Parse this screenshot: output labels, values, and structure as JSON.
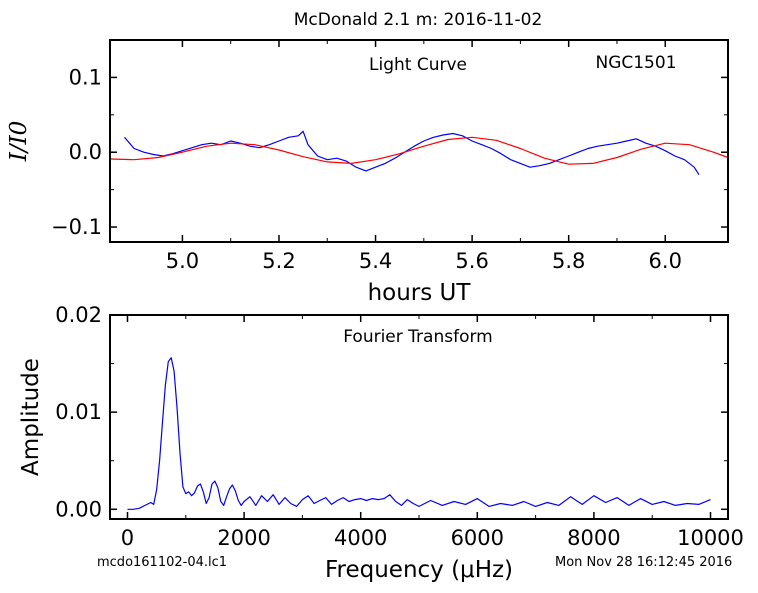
{
  "suptitle": "McDonald 2.1 m:  2016-11-02",
  "footer": {
    "filename": "mcdo161102-04.lc1",
    "timestamp": "Mon Nov 28 16:12:45 2016"
  },
  "colors": {
    "data": "#0000ff",
    "fit": "#ff0000",
    "axes": "#000000"
  },
  "chart_data": [
    {
      "type": "line",
      "annotations": [
        "Light Curve",
        "NGC1501"
      ],
      "xlabel": "hours UT",
      "ylabel": "I/I0",
      "xlim": [
        4.85,
        6.13
      ],
      "ylim": [
        -0.12,
        0.15
      ],
      "xticks": [
        5.0,
        5.2,
        5.4,
        5.6,
        5.8,
        6.0
      ],
      "xtick_labels": [
        "5.0",
        "5.2",
        "5.4",
        "5.6",
        "5.8",
        "6.0"
      ],
      "yticks": [
        0.1,
        0.0,
        -0.1
      ],
      "ytick_labels": [
        "0.1",
        "0.0",
        "−0.1"
      ],
      "series": [
        {
          "role": "data",
          "x": [
            4.88,
            4.9,
            4.92,
            4.94,
            4.96,
            4.98,
            5.0,
            5.02,
            5.04,
            5.06,
            5.08,
            5.1,
            5.12,
            5.14,
            5.16,
            5.18,
            5.2,
            5.22,
            5.24,
            5.25,
            5.26,
            5.28,
            5.3,
            5.32,
            5.34,
            5.36,
            5.38,
            5.4,
            5.42,
            5.44,
            5.46,
            5.48,
            5.5,
            5.52,
            5.54,
            5.56,
            5.58,
            5.6,
            5.62,
            5.64,
            5.66,
            5.68,
            5.7,
            5.72,
            5.74,
            5.76,
            5.78,
            5.8,
            5.82,
            5.84,
            5.86,
            5.88,
            5.9,
            5.92,
            5.94,
            5.96,
            5.98,
            6.0,
            6.02,
            6.04,
            6.06,
            6.07
          ],
          "y": [
            0.02,
            0.005,
            0.0,
            -0.003,
            -0.005,
            -0.002,
            0.002,
            0.006,
            0.01,
            0.012,
            0.01,
            0.015,
            0.012,
            0.008,
            0.006,
            0.01,
            0.015,
            0.02,
            0.022,
            0.028,
            0.01,
            -0.005,
            -0.01,
            -0.008,
            -0.012,
            -0.02,
            -0.025,
            -0.02,
            -0.015,
            -0.008,
            0.0,
            0.008,
            0.015,
            0.02,
            0.023,
            0.025,
            0.022,
            0.015,
            0.01,
            0.005,
            -0.002,
            -0.01,
            -0.015,
            -0.02,
            -0.018,
            -0.015,
            -0.01,
            -0.005,
            0.0,
            0.005,
            0.008,
            0.01,
            0.012,
            0.015,
            0.018,
            0.012,
            0.008,
            0.002,
            -0.005,
            -0.01,
            -0.02,
            -0.03
          ]
        },
        {
          "role": "fit",
          "x": [
            4.85,
            4.9,
            4.95,
            5.0,
            5.05,
            5.1,
            5.15,
            5.2,
            5.25,
            5.3,
            5.35,
            5.4,
            5.45,
            5.5,
            5.55,
            5.6,
            5.65,
            5.7,
            5.75,
            5.8,
            5.85,
            5.9,
            5.95,
            6.0,
            6.05,
            6.1,
            6.13
          ],
          "y": [
            -0.009,
            -0.01,
            -0.007,
            0.0,
            0.008,
            0.012,
            0.01,
            0.003,
            -0.006,
            -0.013,
            -0.015,
            -0.01,
            -0.002,
            0.008,
            0.017,
            0.02,
            0.016,
            0.005,
            -0.008,
            -0.016,
            -0.015,
            -0.007,
            0.004,
            0.012,
            0.01,
            0.0,
            -0.007
          ]
        }
      ]
    },
    {
      "type": "line",
      "annotations": [
        "Fourier Transform"
      ],
      "xlabel": "Frequency (μHz)",
      "ylabel": "Amplitude",
      "xlim": [
        -300,
        10300
      ],
      "ylim": [
        -0.001,
        0.02
      ],
      "xticks": [
        0,
        2000,
        4000,
        6000,
        8000,
        10000
      ],
      "xtick_labels": [
        "0",
        "2000",
        "4000",
        "6000",
        "8000",
        "10000"
      ],
      "yticks": [
        0.0,
        0.01,
        0.02
      ],
      "ytick_labels": [
        "0.00",
        "0.01",
        "0.02"
      ],
      "series": [
        {
          "role": "data",
          "x": [
            0,
            100,
            200,
            300,
            400,
            450,
            500,
            550,
            600,
            650,
            700,
            750,
            800,
            850,
            900,
            950,
            1000,
            1050,
            1100,
            1150,
            1200,
            1250,
            1300,
            1350,
            1400,
            1450,
            1500,
            1550,
            1600,
            1650,
            1700,
            1750,
            1800,
            1850,
            1900,
            1950,
            2000,
            2100,
            2200,
            2300,
            2400,
            2500,
            2600,
            2700,
            2800,
            2900,
            3000,
            3100,
            3200,
            3300,
            3400,
            3500,
            3600,
            3700,
            3800,
            3900,
            4000,
            4100,
            4200,
            4300,
            4400,
            4500,
            4600,
            4700,
            4800,
            4900,
            5000,
            5200,
            5400,
            5600,
            5800,
            6000,
            6200,
            6400,
            6600,
            6800,
            7000,
            7200,
            7400,
            7600,
            7800,
            8000,
            8200,
            8400,
            8600,
            8800,
            9000,
            9200,
            9400,
            9600,
            9800,
            10000
          ],
          "y": [
            0.0,
            0.0,
            0.0001,
            0.0004,
            0.0007,
            0.0005,
            0.002,
            0.005,
            0.009,
            0.0128,
            0.0152,
            0.0156,
            0.0142,
            0.0105,
            0.0058,
            0.0023,
            0.0016,
            0.0018,
            0.0014,
            0.0017,
            0.0024,
            0.0026,
            0.0018,
            0.0006,
            0.0012,
            0.0026,
            0.0029,
            0.0022,
            0.0008,
            0.0004,
            0.0013,
            0.0021,
            0.0025,
            0.0019,
            0.0009,
            0.0004,
            0.0008,
            0.0013,
            0.0004,
            0.0014,
            0.0008,
            0.0015,
            0.0005,
            0.0012,
            0.0006,
            0.0003,
            0.001,
            0.0014,
            0.0006,
            0.0009,
            0.0012,
            0.0005,
            0.0009,
            0.0012,
            0.0008,
            0.001,
            0.0011,
            0.0009,
            0.0011,
            0.001,
            0.0011,
            0.0015,
            0.0008,
            0.0004,
            0.001,
            0.0006,
            0.0003,
            0.0009,
            0.0004,
            0.0008,
            0.0005,
            0.0011,
            0.0003,
            0.0006,
            0.0004,
            0.0008,
            0.0003,
            0.0007,
            0.0004,
            0.0013,
            0.0005,
            0.0014,
            0.0007,
            0.0012,
            0.0004,
            0.0011,
            0.0005,
            0.0008,
            0.0004,
            0.0006,
            0.0005,
            0.001
          ]
        }
      ]
    }
  ]
}
